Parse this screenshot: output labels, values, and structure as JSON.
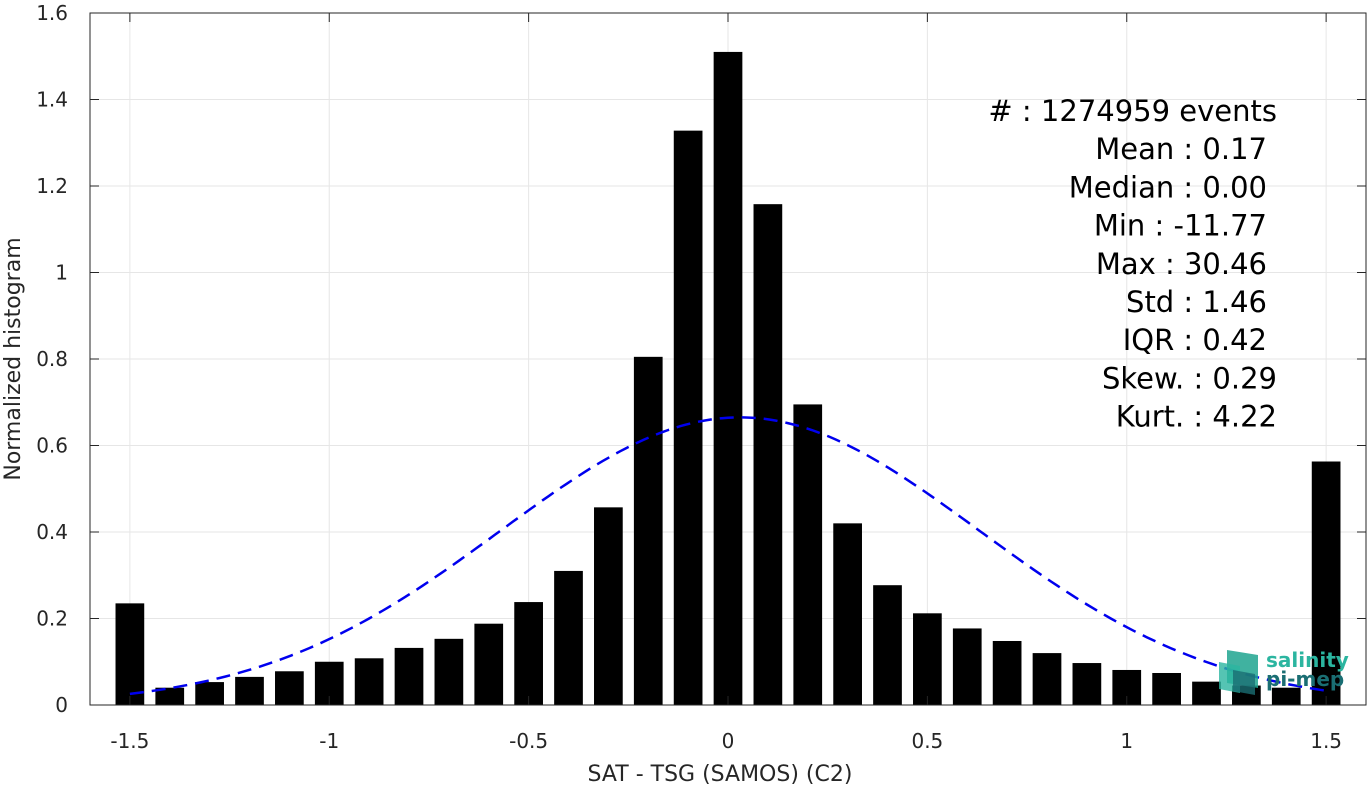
{
  "chart_data": {
    "type": "bar",
    "xlabel": "SAT - TSG (SAMOS) (C2)",
    "ylabel": "Normalized histogram",
    "xlim": [
      -1.6,
      1.6
    ],
    "ylim": [
      0,
      1.6
    ],
    "xticks": [
      -1.5,
      -1,
      -0.5,
      0,
      0.5,
      1,
      1.5
    ],
    "xtick_labels": [
      "-1.5",
      "-1",
      "-0.5",
      "0",
      "0.5",
      "1",
      "1.5"
    ],
    "yticks": [
      0,
      0.2,
      0.4,
      0.6,
      0.8,
      1,
      1.2,
      1.4,
      1.6
    ],
    "ytick_labels": [
      "0",
      "0.2",
      "0.4",
      "0.6",
      "0.8",
      "1",
      "1.2",
      "1.4",
      "1.6"
    ],
    "grid": true,
    "bar_color": "#000000",
    "bin_width": 0.1,
    "bins": [
      {
        "x": -1.5,
        "value": 0.235
      },
      {
        "x": -1.4,
        "value": 0.04
      },
      {
        "x": -1.3,
        "value": 0.053
      },
      {
        "x": -1.2,
        "value": 0.065
      },
      {
        "x": -1.1,
        "value": 0.078
      },
      {
        "x": -1.0,
        "value": 0.1
      },
      {
        "x": -0.9,
        "value": 0.108
      },
      {
        "x": -0.8,
        "value": 0.132
      },
      {
        "x": -0.7,
        "value": 0.153
      },
      {
        "x": -0.6,
        "value": 0.188
      },
      {
        "x": -0.5,
        "value": 0.238
      },
      {
        "x": -0.4,
        "value": 0.31
      },
      {
        "x": -0.3,
        "value": 0.457
      },
      {
        "x": -0.2,
        "value": 0.805
      },
      {
        "x": -0.1,
        "value": 1.328
      },
      {
        "x": 0.0,
        "value": 1.51
      },
      {
        "x": 0.1,
        "value": 1.158
      },
      {
        "x": 0.2,
        "value": 0.695
      },
      {
        "x": 0.3,
        "value": 0.42
      },
      {
        "x": 0.4,
        "value": 0.277
      },
      {
        "x": 0.5,
        "value": 0.212
      },
      {
        "x": 0.6,
        "value": 0.177
      },
      {
        "x": 0.7,
        "value": 0.148
      },
      {
        "x": 0.8,
        "value": 0.12
      },
      {
        "x": 0.9,
        "value": 0.097
      },
      {
        "x": 1.0,
        "value": 0.081
      },
      {
        "x": 1.1,
        "value": 0.074
      },
      {
        "x": 1.2,
        "value": 0.054
      },
      {
        "x": 1.3,
        "value": 0.045
      },
      {
        "x": 1.4,
        "value": 0.04
      },
      {
        "x": 1.5,
        "value": 0.563
      }
    ],
    "fit_curve": {
      "type": "gaussian",
      "style": "dashed",
      "color": "#0000ee",
      "mean": 0.03,
      "std": 0.6,
      "peak": 0.665,
      "x_range": [
        -1.5,
        1.5
      ]
    },
    "stats": [
      {
        "label": "#  : 1274959 events",
        "anchor": "end",
        "right": 1277
      },
      {
        "label": "Mean : 0.17",
        "anchor": "end",
        "right": 1267
      },
      {
        "label": "Median : 0.00",
        "anchor": "end",
        "right": 1267
      },
      {
        "label": "Min : -11.77",
        "anchor": "end",
        "right": 1267
      },
      {
        "label": "Max : 30.46",
        "anchor": "end",
        "right": 1267
      },
      {
        "label": "Std : 1.46",
        "anchor": "end",
        "right": 1267
      },
      {
        "label": "IQR : 0.42",
        "anchor": "end",
        "right": 1267
      },
      {
        "label": "Skew. : 0.29",
        "anchor": "end",
        "right": 1277
      },
      {
        "label": "Kurt. : 4.22",
        "anchor": "end",
        "right": 1277
      }
    ]
  },
  "logo": {
    "line1": "salinity",
    "line2": "pi-mep",
    "color1": "#2bb5a0",
    "color2": "#1a6e73"
  }
}
